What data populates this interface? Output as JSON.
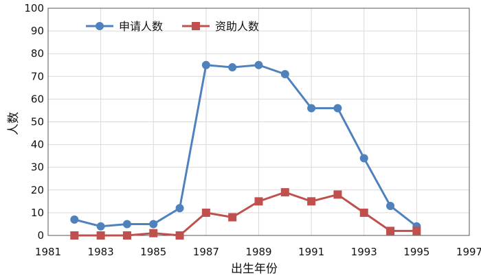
{
  "chart_data": {
    "type": "line",
    "xlabel": "出生年份",
    "ylabel": "人数",
    "xlim": [
      1981,
      1997
    ],
    "ylim": [
      0,
      100
    ],
    "x_ticks": [
      "1981",
      "1983",
      "1985",
      "1987",
      "1989",
      "1991",
      "1993",
      "1995",
      "1997"
    ],
    "y_ticks": [
      "0",
      "10",
      "20",
      "30",
      "40",
      "50",
      "60",
      "70",
      "80",
      "90",
      "100"
    ],
    "grid": true,
    "legend_position": "top-left",
    "x": [
      1982,
      1983,
      1984,
      1985,
      1986,
      1987,
      1988,
      1989,
      1990,
      1991,
      1992,
      1993,
      1994,
      1995
    ],
    "series": [
      {
        "name": "申请人数",
        "color": "#4f81bd",
        "marker": "circle",
        "values": [
          7,
          4,
          5,
          5,
          12,
          75,
          74,
          75,
          71,
          56,
          56,
          34,
          13,
          4
        ]
      },
      {
        "name": "资助人数",
        "color": "#c0504d",
        "marker": "square",
        "values": [
          0,
          0,
          0,
          1,
          0,
          10,
          8,
          15,
          19,
          15,
          18,
          10,
          2,
          2
        ]
      }
    ]
  }
}
